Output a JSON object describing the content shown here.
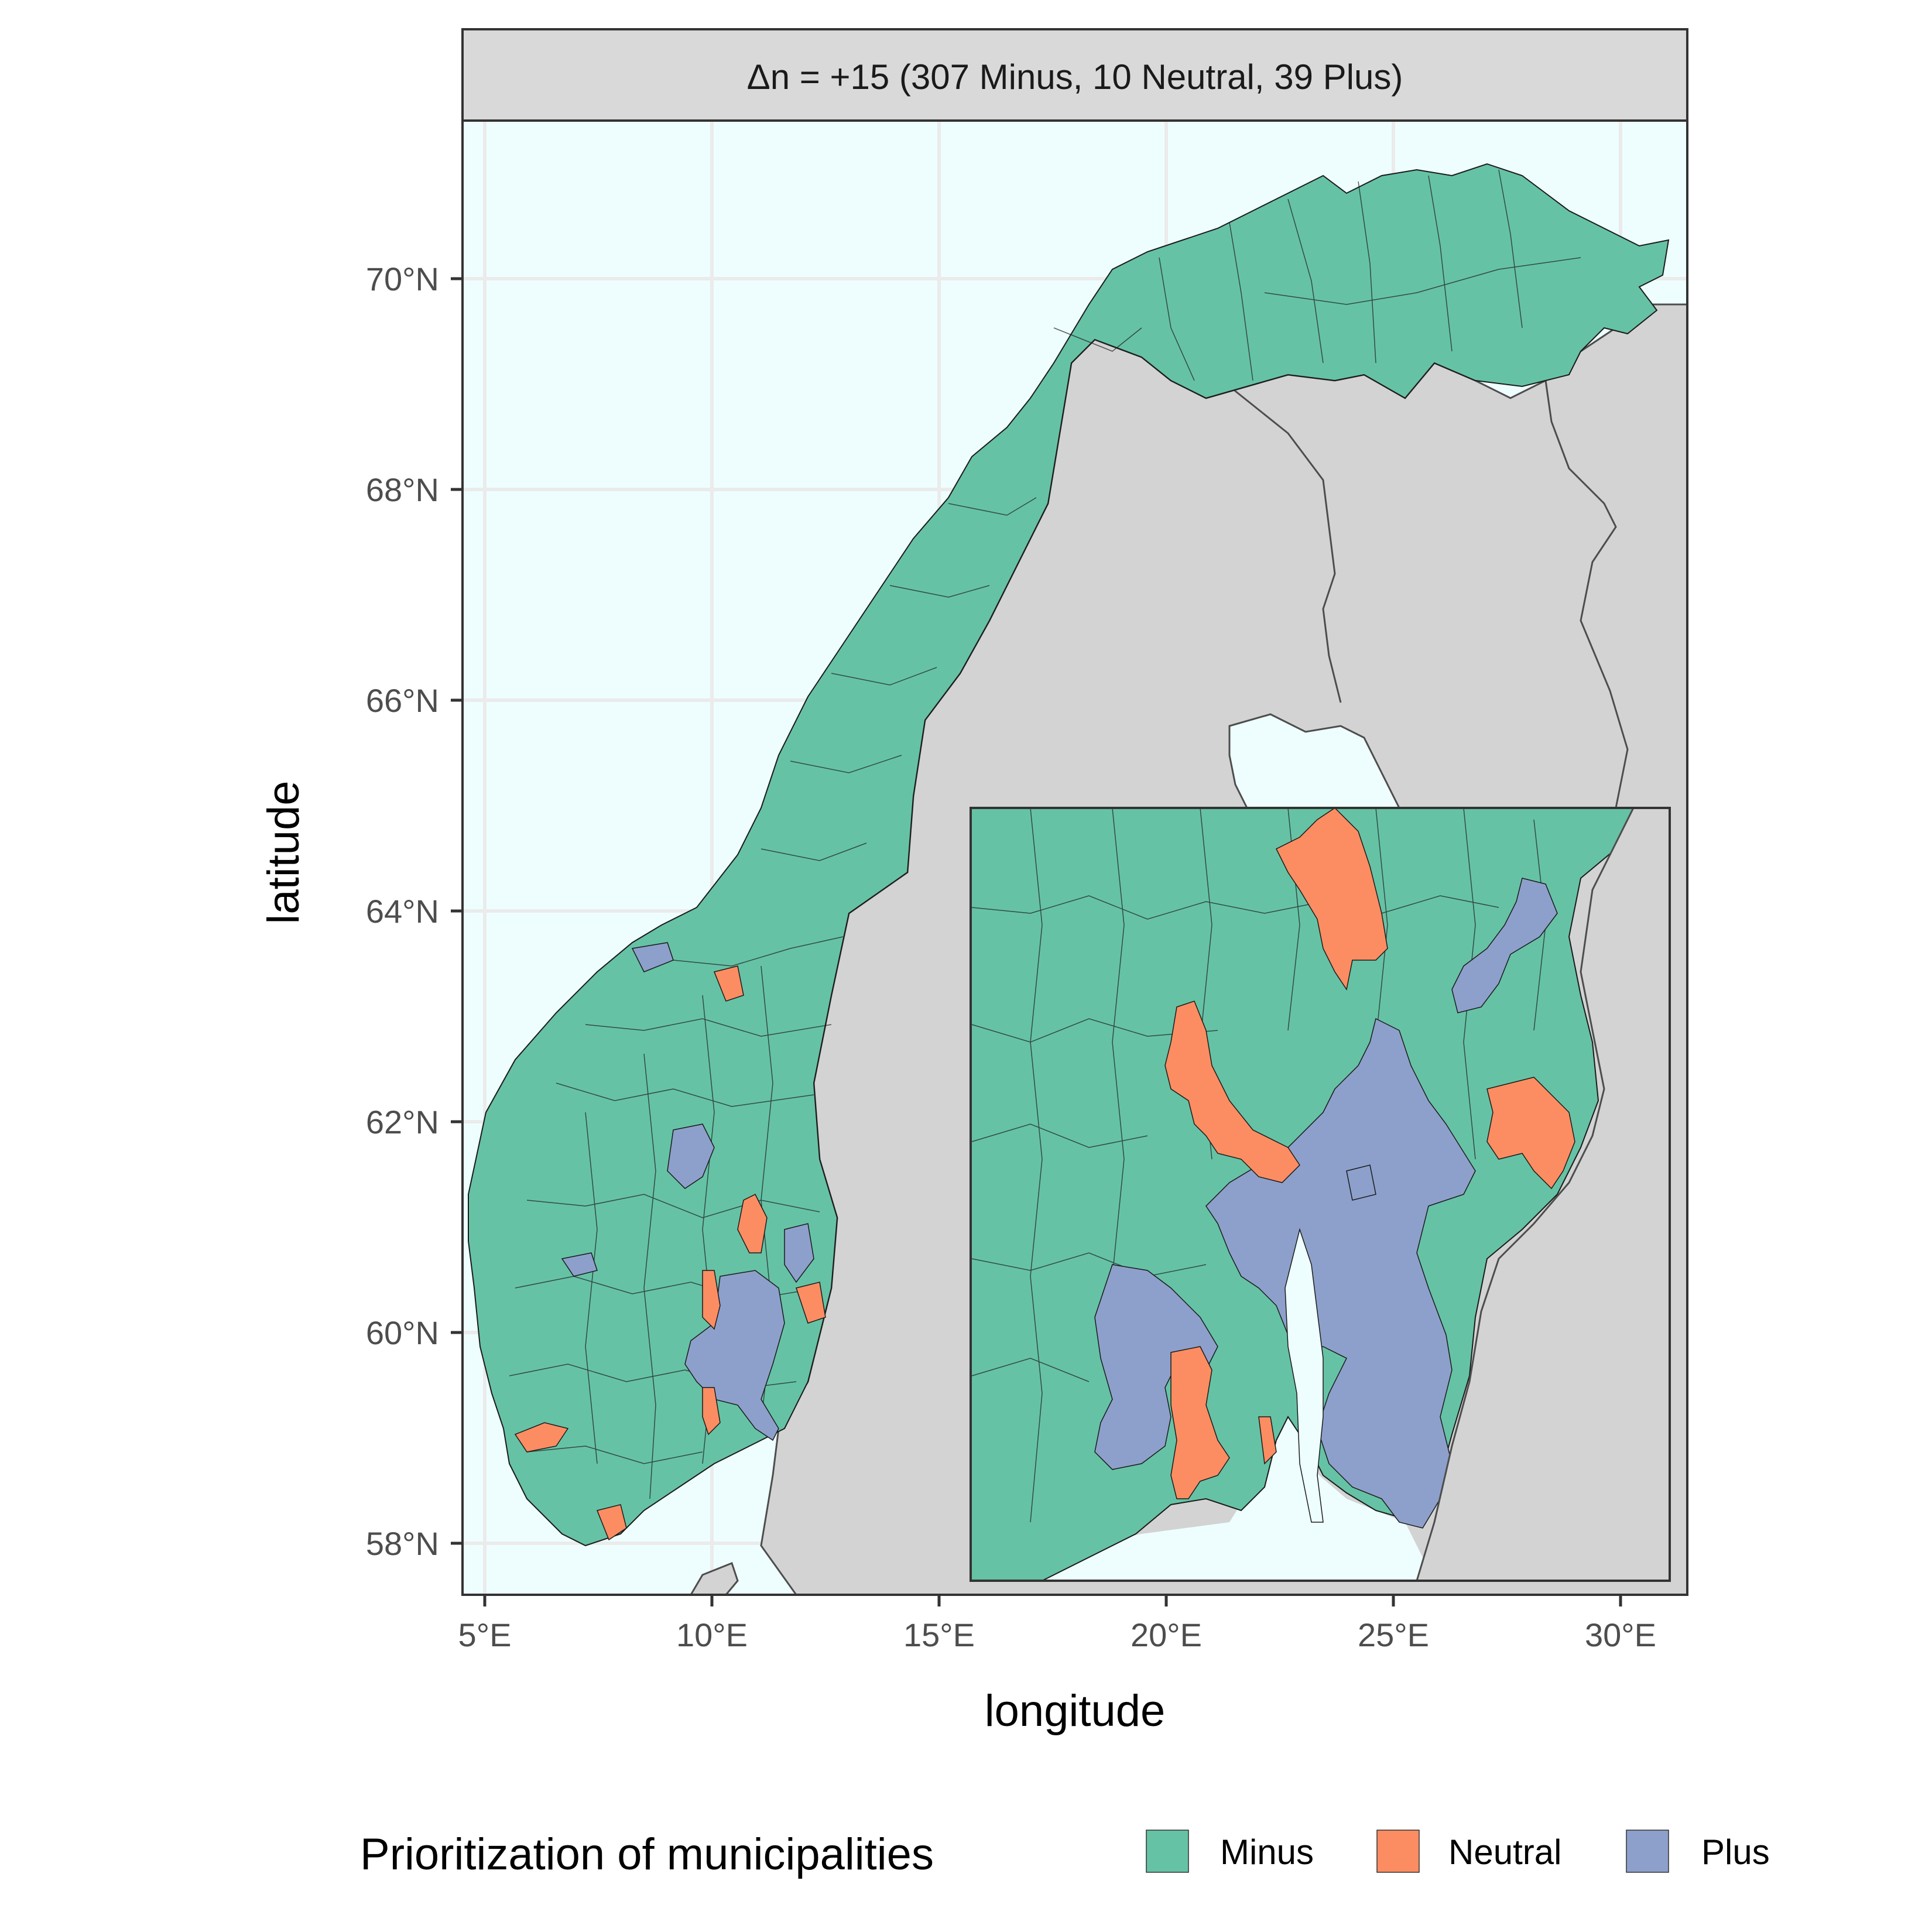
{
  "facet": {
    "strip_label": "Δn = +15 (307 Minus, 10 Neutral, 39 Plus)"
  },
  "axes": {
    "x_title": "longitude",
    "y_title": "latitude",
    "x_ticks": [
      "5°E",
      "10°E",
      "15°E",
      "20°E",
      "25°E",
      "30°E"
    ],
    "y_ticks": [
      "70°N",
      "68°N",
      "66°N",
      "64°N",
      "62°N",
      "60°N",
      "58°N"
    ],
    "x_tick_values": [
      5,
      10,
      15,
      20,
      25,
      30
    ],
    "y_tick_values": [
      70,
      68,
      66,
      64,
      62,
      60,
      58
    ],
    "xlim": [
      4.5,
      31.5
    ],
    "ylim": [
      57.5,
      71.5
    ]
  },
  "legend": {
    "title": "Prioritization of municipalities",
    "items": [
      {
        "label": "Minus",
        "color": "#66c2a5"
      },
      {
        "label": "Neutral",
        "color": "#fc8d62"
      },
      {
        "label": "Plus",
        "color": "#8da0cb"
      }
    ],
    "position": "bottom"
  },
  "counts": {
    "Minus": 307,
    "Neutral": 10,
    "Plus": 39,
    "delta_n": 15
  },
  "colors": {
    "sea": "#eefefe",
    "land_other": "#d3d3d3",
    "grid": "#ebebeb",
    "strip_bg": "#d9d9d9",
    "border": "#333333"
  },
  "inset": {
    "description": "zoomed view of south-eastern Norway (Oslo region)"
  }
}
